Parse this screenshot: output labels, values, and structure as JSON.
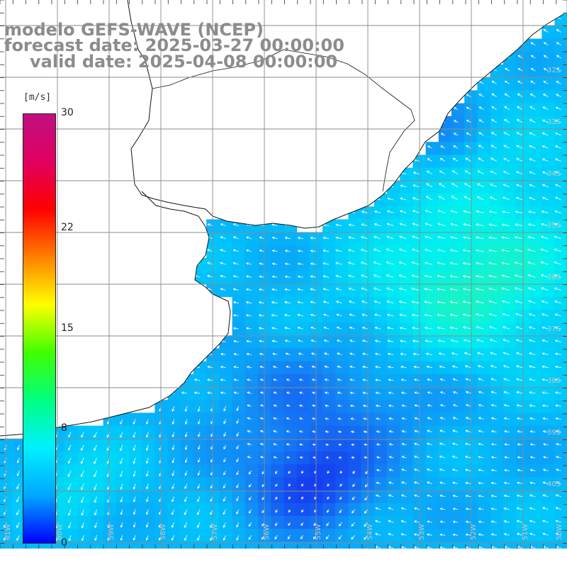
{
  "title": {
    "line1": "modelo GEFS-WAVE (NCEP)",
    "line2": "forecast date: 2025-03-27 00:00:00",
    "line3": "valid date: 2025-04-08 00:00:00"
  },
  "colorbar": {
    "unit": "[m/s]",
    "min": 0,
    "max": 30,
    "ticks": [
      "30",
      "22",
      "15",
      "8",
      "0"
    ],
    "tick_values": [
      30,
      22,
      15,
      8,
      0
    ],
    "colors": [
      "#0000ff",
      "#00a8ff",
      "#00f0ff",
      "#00ff80",
      "#40ff00",
      "#ffff00",
      "#ff8000",
      "#ff0000",
      "#e00060",
      "#c01080"
    ]
  },
  "map": {
    "lat_labels": [
      "32S",
      "33S",
      "34S",
      "35S",
      "36S",
      "37S",
      "38S",
      "39S",
      "40S"
    ],
    "lon_labels": [
      "61W",
      "60W",
      "59W",
      "58W",
      "57W",
      "56W",
      "55W",
      "54W",
      "53W",
      "52W",
      "51W",
      "50W"
    ],
    "ocean_color": "#1f8cf0",
    "land_color": "#ffffff",
    "grid_color": "#8a8a8a",
    "arrow_color": "#ffffff",
    "dominant_flow": "from east-southeast toward west-northwest",
    "wind_speed_range_ms": [
      3,
      11
    ]
  }
}
